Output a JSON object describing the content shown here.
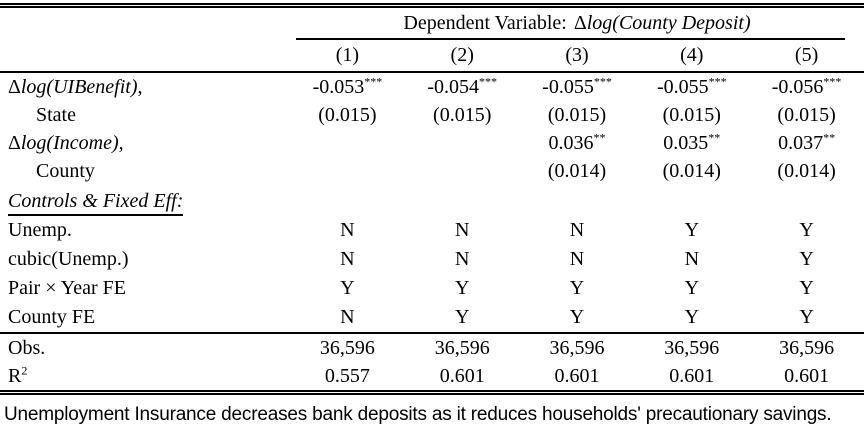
{
  "table": {
    "dep_header": {
      "prefix": "Dependent Variable:",
      "delta": "Δ",
      "math": "log(County Deposit)"
    },
    "cols": [
      "(1)",
      "(2)",
      "(3)",
      "(4)",
      "(5)"
    ],
    "coef_ui": {
      "delta": "Δ",
      "math": "log(UIBenefit)",
      "suffix": ",",
      "sub": "State",
      "values": [
        "-0.053",
        "-0.054",
        "-0.055",
        "-0.055",
        "-0.056"
      ],
      "stars": [
        "***",
        "***",
        "***",
        "***",
        "***"
      ],
      "se": [
        "(0.015)",
        "(0.015)",
        "(0.015)",
        "(0.015)",
        "(0.015)"
      ]
    },
    "coef_income": {
      "delta": "Δ",
      "math": "log(Income)",
      "suffix": ",",
      "sub": "County",
      "values": [
        "",
        "",
        "0.036",
        "0.035",
        "0.037"
      ],
      "stars": [
        "",
        "",
        "**",
        "**",
        "**"
      ],
      "se": [
        "",
        "",
        "(0.014)",
        "(0.014)",
        "(0.014)"
      ]
    },
    "section_header": "Controls & Fixed Eff:",
    "controls": [
      {
        "label": "Unemp.",
        "values": [
          "N",
          "N",
          "N",
          "Y",
          "Y"
        ]
      },
      {
        "label": "cubic(Unemp.)",
        "values": [
          "N",
          "N",
          "N",
          "N",
          "Y"
        ]
      },
      {
        "label": "Pair × Year FE",
        "values": [
          "Y",
          "Y",
          "Y",
          "Y",
          "Y"
        ]
      },
      {
        "label": "County FE",
        "values": [
          "N",
          "Y",
          "Y",
          "Y",
          "Y"
        ]
      }
    ],
    "stats": [
      {
        "label": "Obs.",
        "values": [
          "36,596",
          "36,596",
          "36,596",
          "36,596",
          "36,596"
        ]
      },
      {
        "label": "R",
        "sup": "2",
        "values": [
          "0.557",
          "0.601",
          "0.601",
          "0.601",
          "0.601"
        ]
      }
    ]
  },
  "caption": "Unemployment Insurance decreases bank deposits as it reduces households' precautionary savings."
}
